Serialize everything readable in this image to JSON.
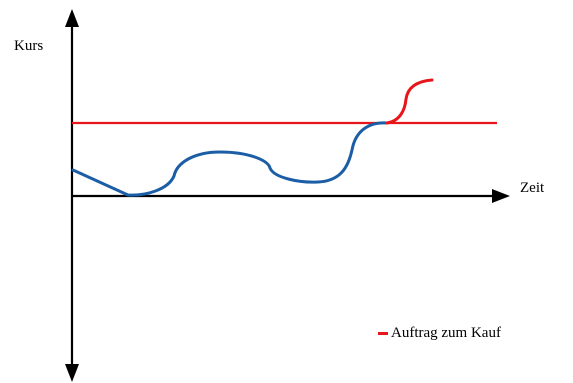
{
  "diagram": {
    "y_axis_label": "Kurs",
    "x_axis_label": "Zeit",
    "legend_label": "Auftrag zum Kauf",
    "colors": {
      "axis": "#000000",
      "buy_order_line": "#e8151b",
      "price_curve": "#1b5ea6",
      "price_curve_tail": "#e8151b"
    }
  }
}
